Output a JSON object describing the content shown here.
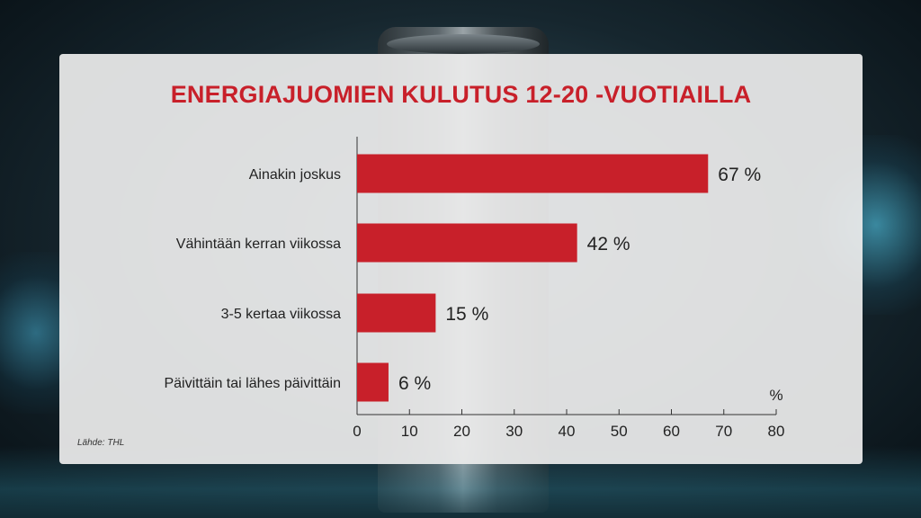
{
  "chart_data": {
    "type": "bar",
    "orientation": "horizontal",
    "title": "ENERGIAJUOMIEN KULUTUS 12-20 -VUOTIAILLA",
    "categories": [
      "Ainakin joskus",
      "Vähintään kerran viikossa",
      "3-5 kertaa viikossa",
      "Päivittäin tai lähes päivittäin"
    ],
    "values": [
      67,
      42,
      15,
      6
    ],
    "value_labels": [
      "67 %",
      "42 %",
      "15 %",
      "6 %"
    ],
    "xlim": [
      0,
      80
    ],
    "x_ticks": [
      "0",
      "10",
      "20",
      "30",
      "40",
      "50",
      "60",
      "70",
      "80"
    ],
    "x_unit": "%",
    "grid": false,
    "bar_color": "#c8202a"
  },
  "source": "Lähde: THL"
}
